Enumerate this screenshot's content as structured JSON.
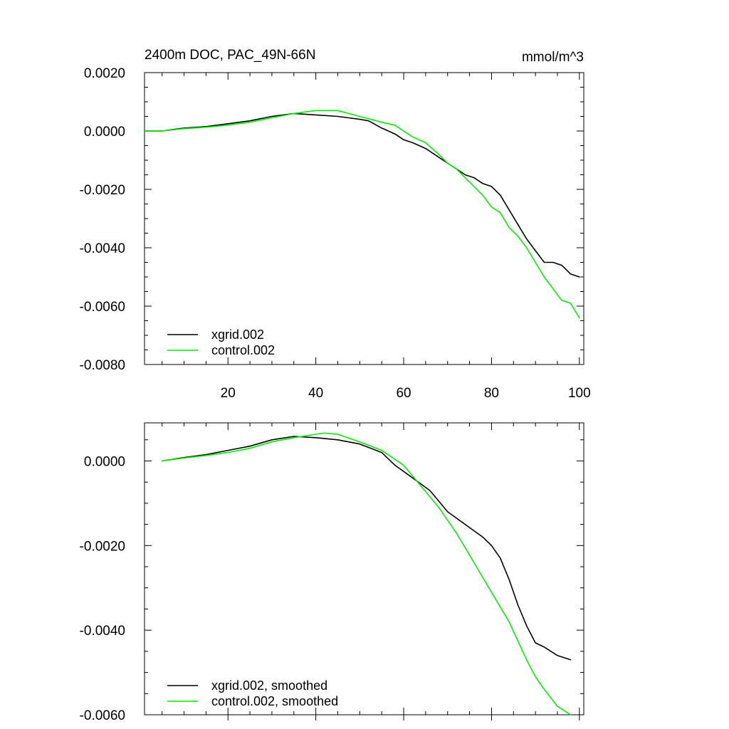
{
  "chart_data": [
    {
      "type": "line",
      "title": "2400m DOC, PAC_49N-66N",
      "units": "mmol/m^3",
      "xlim": [
        1,
        101
      ],
      "ylim": [
        -0.008,
        0.002
      ],
      "x_ticks": [
        "20",
        "40",
        "60",
        "80",
        "100"
      ],
      "y_ticks": [
        "0.0020",
        "0.0000",
        "-0.0020",
        "-0.0040",
        "-0.0060",
        "-0.0080"
      ],
      "legend_position": "bottom-left",
      "series": [
        {
          "name": "xgrid.002",
          "color": "#000000",
          "x": [
            1,
            5,
            10,
            15,
            20,
            25,
            30,
            35,
            40,
            45,
            50,
            52,
            55,
            58,
            60,
            62,
            65,
            68,
            70,
            72,
            74,
            76,
            78,
            80,
            82,
            84,
            86,
            88,
            90,
            92,
            94,
            96,
            98,
            100
          ],
          "y": [
            0.0,
            0.0,
            0.0001,
            0.00015,
            0.00025,
            0.00035,
            0.0005,
            0.0006,
            0.00055,
            0.0005,
            0.0004,
            0.00035,
            0.0001,
            -0.0001,
            -0.0003,
            -0.0004,
            -0.0006,
            -0.0009,
            -0.0011,
            -0.0013,
            -0.0015,
            -0.0016,
            -0.0018,
            -0.0019,
            -0.0022,
            -0.0027,
            -0.0032,
            -0.0037,
            -0.0041,
            -0.0045,
            -0.0045,
            -0.0046,
            -0.0049,
            -0.005
          ]
        },
        {
          "name": "control.002",
          "color": "#00ee00",
          "x": [
            1,
            5,
            10,
            15,
            20,
            25,
            30,
            35,
            40,
            45,
            50,
            55,
            58,
            60,
            62,
            65,
            68,
            70,
            72,
            74,
            76,
            78,
            80,
            82,
            84,
            86,
            88,
            90,
            92,
            94,
            96,
            98,
            100
          ],
          "y": [
            0.0,
            0.0,
            8e-05,
            0.00013,
            0.0002,
            0.0003,
            0.00045,
            0.0006,
            0.0007,
            0.0007,
            0.0005,
            0.0003,
            0.0002,
            0.0,
            -0.0002,
            -0.0004,
            -0.0008,
            -0.0011,
            -0.0013,
            -0.0016,
            -0.0019,
            -0.0022,
            -0.0026,
            -0.0028,
            -0.0033,
            -0.0036,
            -0.004,
            -0.0045,
            -0.005,
            -0.0054,
            -0.0058,
            -0.0059,
            -0.0064
          ]
        }
      ]
    },
    {
      "type": "line",
      "title": "",
      "xlim": [
        1,
        101
      ],
      "ylim": [
        -0.006,
        0.0009
      ],
      "x_ticks": [],
      "y_ticks": [
        "0.0000",
        "-0.0020",
        "-0.0040",
        "-0.0060"
      ],
      "legend_position": "bottom-left",
      "series": [
        {
          "name": "xgrid.002, smoothed",
          "color": "#000000",
          "x": [
            5,
            10,
            15,
            20,
            25,
            30,
            35,
            40,
            45,
            50,
            55,
            58,
            62,
            66,
            70,
            74,
            78,
            80,
            82,
            84,
            86,
            88,
            90,
            92,
            95,
            98
          ],
          "y": [
            0.0,
            8e-05,
            0.00015,
            0.00025,
            0.00035,
            0.0005,
            0.00058,
            0.00055,
            0.0005,
            0.0004,
            0.0002,
            -0.0001,
            -0.0004,
            -0.0007,
            -0.0012,
            -0.0015,
            -0.0018,
            -0.002,
            -0.0023,
            -0.0028,
            -0.0034,
            -0.0039,
            -0.0043,
            -0.0044,
            -0.0046,
            -0.0047
          ]
        },
        {
          "name": "control.002, smoothed",
          "color": "#00ee00",
          "x": [
            5,
            10,
            15,
            20,
            25,
            30,
            35,
            40,
            42,
            45,
            50,
            55,
            60,
            64,
            68,
            72,
            76,
            80,
            84,
            88,
            90,
            92,
            95,
            98
          ],
          "y": [
            0.0,
            7e-05,
            0.00013,
            0.0002,
            0.0003,
            0.00045,
            0.00055,
            0.00063,
            0.00066,
            0.00063,
            0.00045,
            0.00025,
            -0.0001,
            -0.0006,
            -0.0011,
            -0.0017,
            -0.0024,
            -0.0031,
            -0.0038,
            -0.0047,
            -0.0051,
            -0.0054,
            -0.0058,
            -0.006
          ]
        }
      ]
    }
  ]
}
